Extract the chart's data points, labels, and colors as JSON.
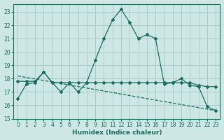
{
  "xlabel": "Humidex (Indice chaleur)",
  "bg_color": "#cde8e4",
  "grid_color": "#aacccc",
  "line_color": "#1a6b60",
  "xlim": [
    -0.5,
    23.5
  ],
  "ylim": [
    15,
    23.6
  ],
  "yticks": [
    15,
    16,
    17,
    18,
    19,
    20,
    21,
    22,
    23
  ],
  "xticks": [
    0,
    1,
    2,
    3,
    4,
    5,
    6,
    7,
    8,
    9,
    10,
    11,
    12,
    13,
    14,
    15,
    16,
    17,
    18,
    19,
    20,
    21,
    22,
    23
  ],
  "series1_x": [
    0,
    1,
    2,
    3,
    4,
    5,
    6,
    7,
    8,
    9,
    10,
    11,
    12,
    13,
    14,
    15,
    16,
    17,
    18,
    19,
    20,
    21,
    22,
    23
  ],
  "series1_y": [
    16.5,
    17.6,
    17.7,
    18.5,
    17.7,
    17.0,
    17.7,
    17.0,
    17.7,
    19.4,
    21.0,
    22.4,
    23.2,
    22.2,
    21.0,
    21.3,
    21.0,
    17.6,
    17.7,
    18.0,
    17.5,
    17.4,
    15.9,
    15.6
  ],
  "series2_x": [
    0,
    1,
    2,
    3,
    4,
    5,
    6,
    7,
    8,
    9,
    10,
    11,
    12,
    13,
    14,
    15,
    16,
    17,
    18,
    19,
    20,
    21,
    22,
    23
  ],
  "series2_y": [
    17.8,
    17.8,
    17.8,
    18.5,
    17.7,
    17.7,
    17.7,
    17.7,
    17.7,
    17.7,
    17.7,
    17.7,
    17.7,
    17.7,
    17.7,
    17.7,
    17.7,
    17.7,
    17.7,
    17.7,
    17.7,
    17.5,
    17.4,
    17.4
  ],
  "series3_x": [
    0,
    23
  ],
  "series3_y": [
    18.2,
    15.6
  ]
}
